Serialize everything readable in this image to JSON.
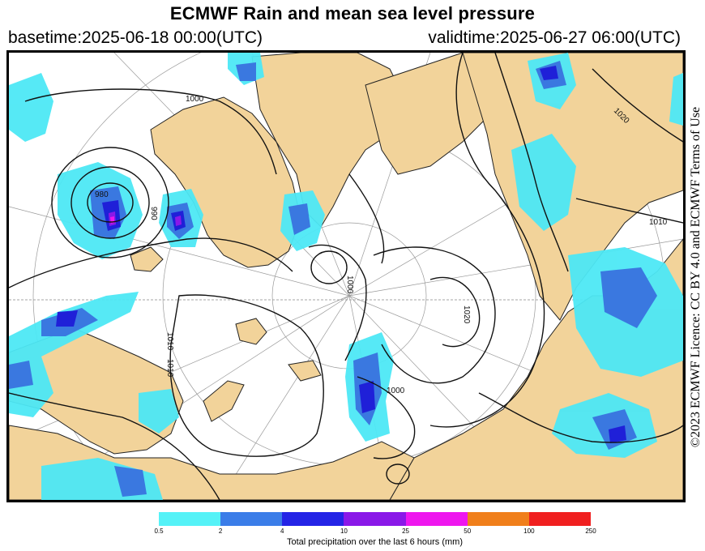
{
  "header": {
    "title": "ECMWF Rain and mean sea level pressure",
    "basetime": "basetime:2025-06-18 00:00(UTC)",
    "validtime": "validtime:2025-06-27 06:00(UTC)"
  },
  "map": {
    "isobar_labels": [
      "1000",
      "980",
      "990",
      "1010",
      "1010",
      "1000",
      "1020",
      "1010",
      "1000",
      "1020"
    ],
    "colors": {
      "land": "#f2d39a",
      "sea": "#ffffff",
      "light_precip": "#4de8f5",
      "moderate_precip": "#3a78e0",
      "heavy_precip": "#1f20d8",
      "isobar": "#000000"
    }
  },
  "licence": "©2023 ECMWF Licence: CC BY 4.0 and ECMWF Terms of Use",
  "legend": {
    "colors": [
      "#55f2f7",
      "#3b7de8",
      "#2424e6",
      "#8a18e8",
      "#ee16ee",
      "#f07f1b",
      "#f01f1f"
    ],
    "ticks": [
      "0.5",
      "2",
      "4",
      "10",
      "25",
      "50",
      "100",
      "250"
    ],
    "caption": "Total precipitation over the last 6 hours (mm)"
  }
}
